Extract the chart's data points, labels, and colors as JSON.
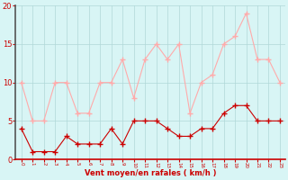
{
  "x": [
    0,
    1,
    2,
    3,
    4,
    5,
    6,
    7,
    8,
    9,
    10,
    11,
    12,
    13,
    14,
    15,
    16,
    17,
    18,
    19,
    20,
    21,
    22,
    23
  ],
  "vent_moyen": [
    4,
    1,
    1,
    1,
    3,
    2,
    2,
    2,
    4,
    2,
    5,
    5,
    5,
    4,
    3,
    3,
    4,
    4,
    6,
    7,
    7,
    5,
    5,
    5
  ],
  "rafales": [
    10,
    5,
    5,
    10,
    10,
    6,
    6,
    10,
    10,
    13,
    8,
    13,
    15,
    13,
    15,
    6,
    10,
    11,
    15,
    16,
    19,
    13,
    13,
    10
  ],
  "xlabel": "Vent moyen/en rafales ( km/h )",
  "xlim": [
    -0.5,
    23.5
  ],
  "ylim": [
    0,
    20
  ],
  "yticks": [
    0,
    5,
    10,
    15,
    20
  ],
  "xticks": [
    0,
    1,
    2,
    3,
    4,
    5,
    6,
    7,
    8,
    9,
    10,
    11,
    12,
    13,
    14,
    15,
    16,
    17,
    18,
    19,
    20,
    21,
    22,
    23
  ],
  "bg_color": "#d8f5f5",
  "grid_color": "#b0d8d8",
  "line_color_moyen": "#cc0000",
  "line_color_rafales": "#ffaaaa",
  "tick_color": "#cc0000",
  "xlabel_color": "#cc0000",
  "left_spine_color": "#555555",
  "bottom_spine_color": "#cc0000"
}
